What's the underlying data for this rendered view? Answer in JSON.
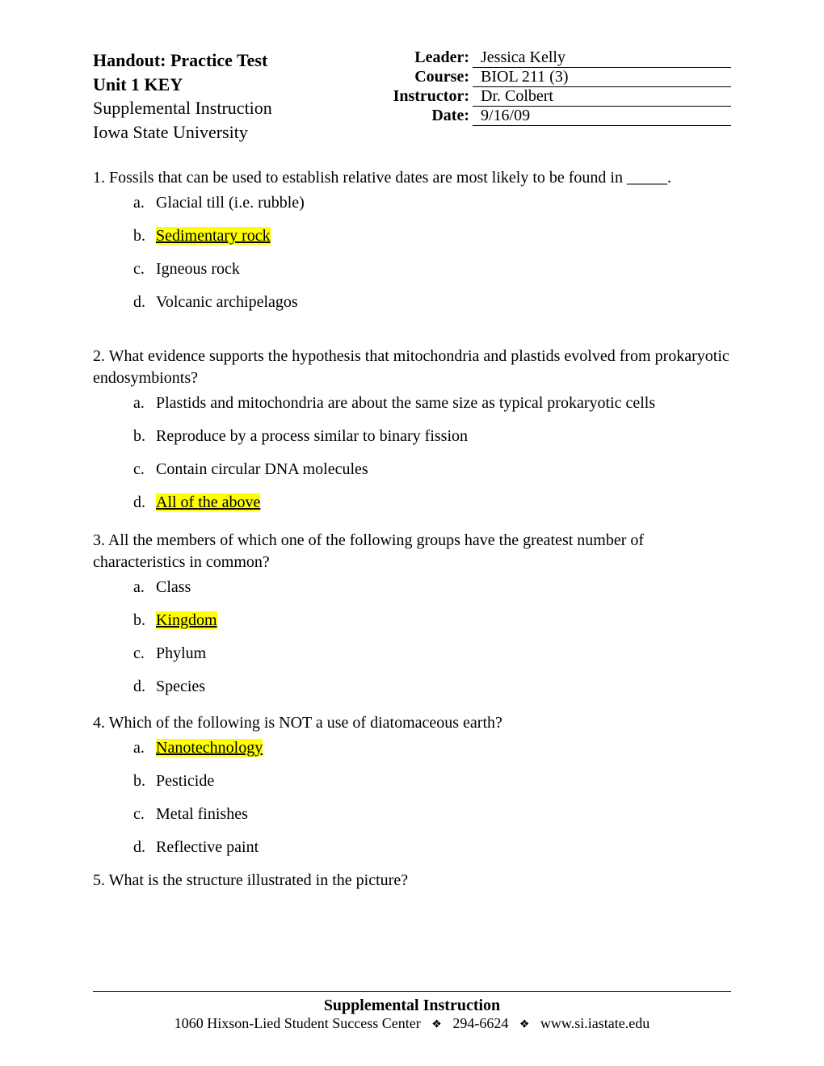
{
  "header": {
    "title_line1": "Handout: Practice Test",
    "title_line2": "Unit 1 KEY",
    "subtitle_line1": "Supplemental Instruction",
    "subtitle_line2": "Iowa State University",
    "info": {
      "leader_label": "Leader:",
      "leader_value": "Jessica Kelly",
      "course_label": "Course:",
      "course_value": "BIOL 211 (3)",
      "instructor_label": "Instructor:",
      "instructor_value": "Dr. Colbert",
      "date_label": "Date:",
      "date_value": "9/16/09"
    }
  },
  "questions": [
    {
      "number": "1.",
      "text": "Fossils that can be used to establish relative dates are most likely to be found in _____.",
      "options": [
        {
          "letter": "a.",
          "text": "Glacial till (i.e. rubble)",
          "highlighted": false
        },
        {
          "letter": "b.",
          "text": "Sedimentary rock",
          "highlighted": true
        },
        {
          "letter": "c.",
          "text": "Igneous rock",
          "highlighted": false
        },
        {
          "letter": "d.",
          "text": "Volcanic archipelagos",
          "highlighted": false
        }
      ]
    },
    {
      "number": "2.",
      "text": "What evidence supports the hypothesis that mitochondria and plastids evolved from prokaryotic endosymbionts?",
      "options": [
        {
          "letter": "a.",
          "text": "Plastids and mitochondria are about the same size as typical prokaryotic cells",
          "highlighted": false
        },
        {
          "letter": "b.",
          "text": "Reproduce by a process similar to binary fission",
          "highlighted": false
        },
        {
          "letter": "c.",
          "text": "Contain circular DNA molecules",
          "highlighted": false
        },
        {
          "letter": "d.",
          "text": "All of the above",
          "highlighted": true
        }
      ]
    },
    {
      "number": "3.",
      "text": "All the members of which one of the following groups have the greatest number of characteristics in common?",
      "options": [
        {
          "letter": "a.",
          "text": "Class",
          "highlighted": false
        },
        {
          "letter": "b.",
          "text": "Kingdom",
          "highlighted": true
        },
        {
          "letter": "c.",
          "text": "Phylum",
          "highlighted": false
        },
        {
          "letter": "d.",
          "text": "Species",
          "highlighted": false
        }
      ]
    },
    {
      "number": "4.",
      "text": "Which of the following is NOT a use of diatomaceous earth?",
      "options": [
        {
          "letter": "a.",
          "text": "Nanotechnology",
          "highlighted": true
        },
        {
          "letter": "b.",
          "text": "Pesticide",
          "highlighted": false
        },
        {
          "letter": "c.",
          "text": "Metal finishes",
          "highlighted": false
        },
        {
          "letter": "d.",
          "text": "Reflective paint",
          "highlighted": false
        }
      ]
    },
    {
      "number": "5.",
      "text": "What is the structure illustrated in the picture?",
      "options": []
    }
  ],
  "footer": {
    "title": "Supplemental Instruction",
    "address": "1060 Hixson-Lied Student Success Center",
    "phone": "294-6624",
    "url": "www.si.iastate.edu",
    "separator": "❖"
  }
}
